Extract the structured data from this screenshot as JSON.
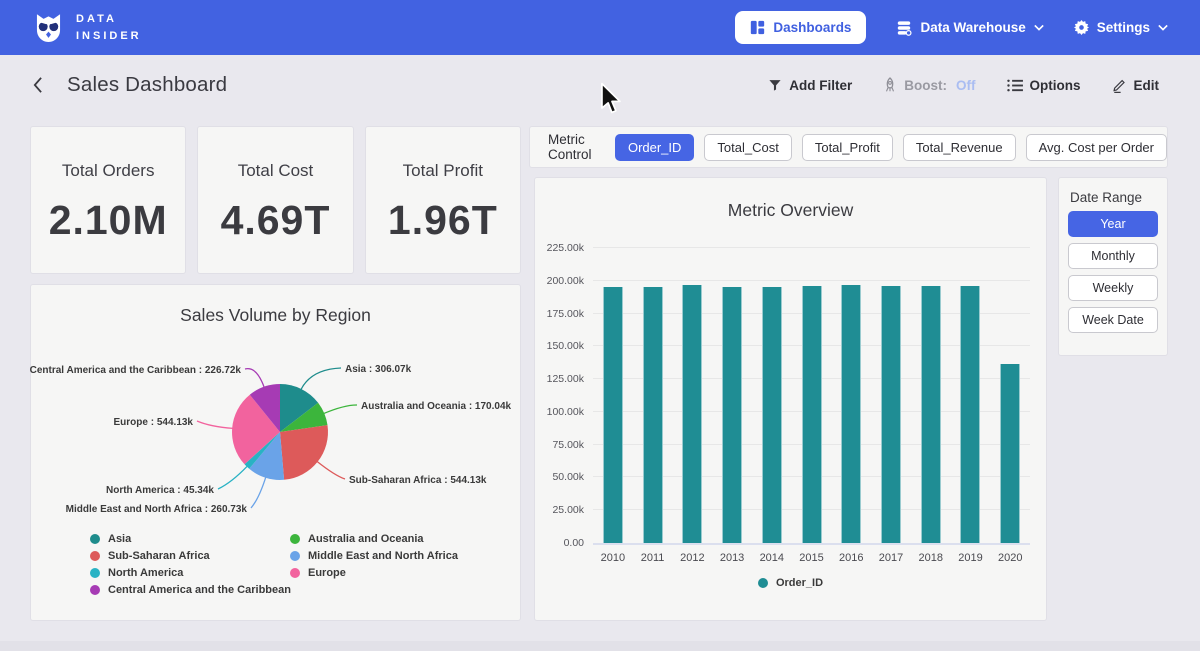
{
  "navbar": {
    "brand": {
      "line1": "DATA",
      "line2": "INSIDER"
    },
    "dashboards_label": "Dashboards",
    "data_warehouse_label": "Data Warehouse",
    "settings_label": "Settings"
  },
  "header": {
    "title": "Sales Dashboard",
    "actions": {
      "add_filter": "Add Filter",
      "boost_label": "Boost:",
      "boost_value": "Off",
      "options": "Options",
      "edit": "Edit"
    }
  },
  "kpis": [
    {
      "label": "Total Orders",
      "value": "2.10M"
    },
    {
      "label": "Total Cost",
      "value": "4.69T"
    },
    {
      "label": "Total Profit",
      "value": "1.96T"
    }
  ],
  "metric_control": {
    "label": "Metric Control",
    "options": [
      {
        "label": "Order_ID",
        "selected": true
      },
      {
        "label": "Total_Cost",
        "selected": false
      },
      {
        "label": "Total_Profit",
        "selected": false
      },
      {
        "label": "Total_Revenue",
        "selected": false
      },
      {
        "label": "Avg. Cost per Order",
        "selected": false
      }
    ]
  },
  "date_range": {
    "label": "Date Range",
    "options": [
      {
        "label": "Year",
        "selected": true
      },
      {
        "label": "Monthly",
        "selected": false
      },
      {
        "label": "Weekly",
        "selected": false
      },
      {
        "label": "Week Date",
        "selected": false
      }
    ]
  },
  "chart_data": [
    {
      "type": "pie",
      "title": "Sales Volume by Region",
      "unit": "k",
      "slices": [
        {
          "label": "Asia",
          "value": 306.07,
          "display": "306.07k",
          "color": "#1e8c8c"
        },
        {
          "label": "Australia and Oceania",
          "value": 170.04,
          "display": "170.04k",
          "color": "#3cb53c"
        },
        {
          "label": "Sub-Saharan Africa",
          "value": 544.13,
          "display": "544.13k",
          "color": "#dd5a5a"
        },
        {
          "label": "Middle East and North Africa",
          "value": 260.73,
          "display": "260.73k",
          "color": "#6aa3e8"
        },
        {
          "label": "North America",
          "value": 45.34,
          "display": "45.34k",
          "color": "#29b2c4"
        },
        {
          "label": "Europe",
          "value": 544.13,
          "display": "544.13k",
          "color": "#f2639e"
        },
        {
          "label": "Central America and the Caribbean",
          "value": 226.72,
          "display": "226.72k",
          "color": "#a63bb4"
        }
      ],
      "legend_columns": [
        [
          "Asia",
          "Sub-Saharan Africa",
          "North America",
          "Central America and the Caribbean"
        ],
        [
          "Australia and Oceania",
          "Middle East and North Africa",
          "Europe"
        ]
      ],
      "legend_position": "bottom"
    },
    {
      "type": "bar",
      "title": "Metric Overview",
      "categories": [
        "2010",
        "2011",
        "2012",
        "2013",
        "2014",
        "2015",
        "2016",
        "2017",
        "2018",
        "2019",
        "2020"
      ],
      "values": [
        195600,
        195400,
        196900,
        195500,
        195400,
        195700,
        196700,
        195900,
        196000,
        196100,
        136400
      ],
      "ylim": [
        0,
        225000
      ],
      "yticks": [
        "0.00",
        "25.00k",
        "50.00k",
        "75.00k",
        "100.00k",
        "125.00k",
        "150.00k",
        "175.00k",
        "200.00k",
        "225.00k"
      ],
      "legend": [
        "Order_ID"
      ],
      "bar_color": "#1f8d94",
      "grid": true,
      "legend_position": "bottom"
    }
  ],
  "colors": {
    "navbar_blue": "#4262e1",
    "accent_blue": "#4665e4",
    "page_bg": "#e9e8ee",
    "card_bg": "#f6f6f5",
    "bar_teal": "#1f8d94",
    "boost_off_blue": "#aabdf2"
  }
}
